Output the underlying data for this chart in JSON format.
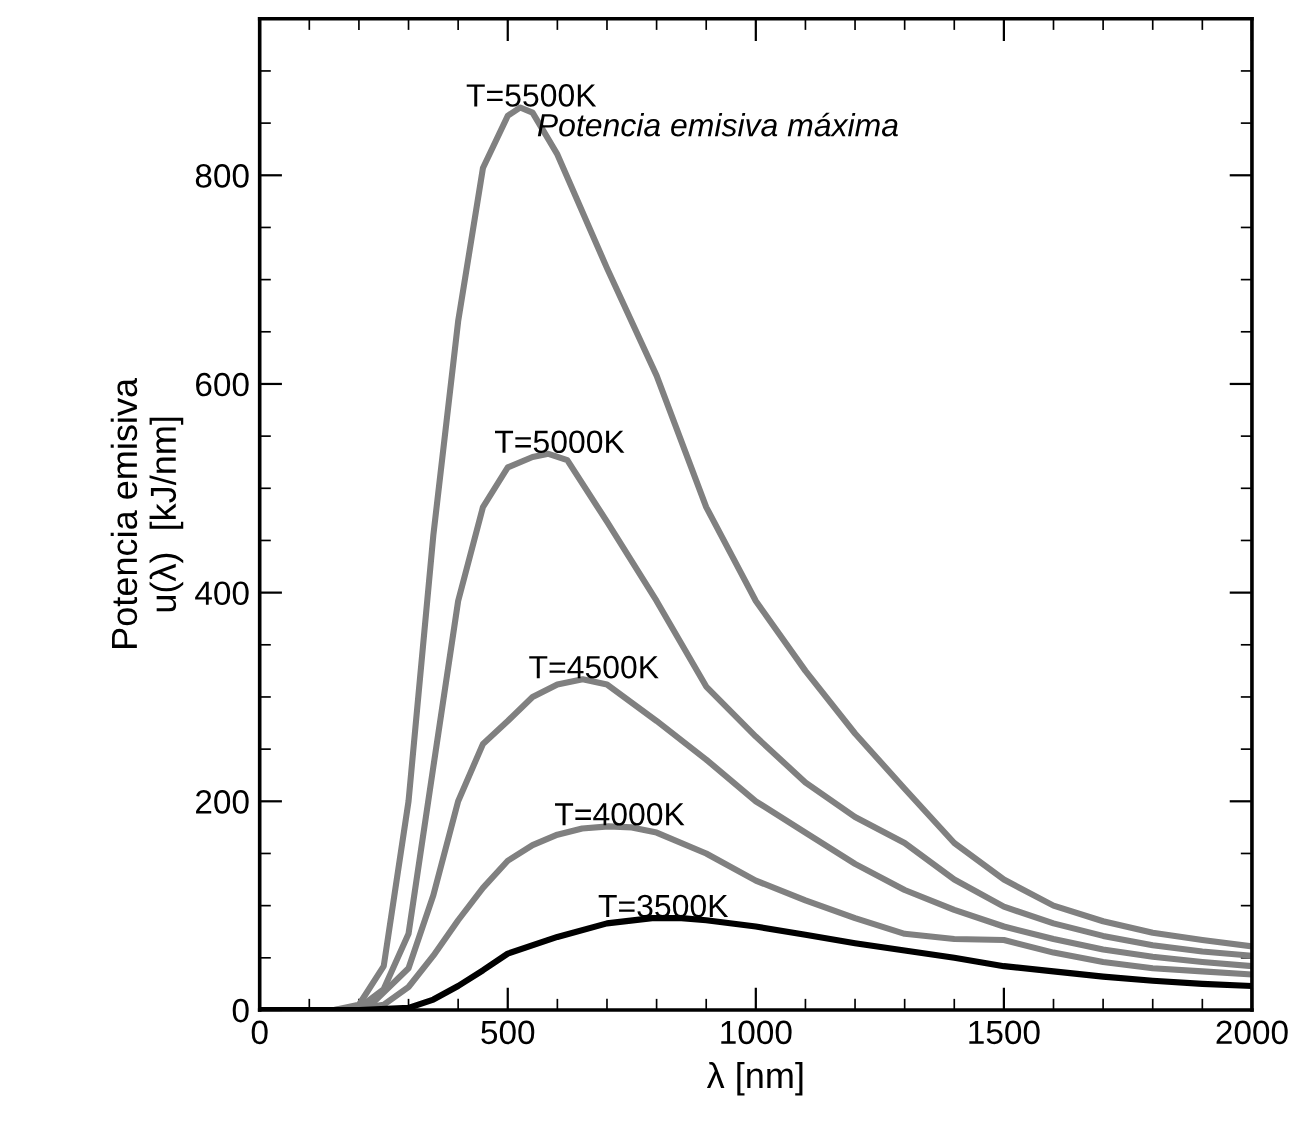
{
  "chart_data": {
    "type": "line",
    "xlabel": "λ [nm]",
    "ylabel": "Potencia emisiva\nu(λ)  [kJ/nm]",
    "xlim": [
      0,
      2000
    ],
    "ylim": [
      0,
      950
    ],
    "xticks": [
      0,
      500,
      1000,
      1500,
      2000
    ],
    "yticks": [
      0,
      200,
      400,
      600,
      800
    ],
    "grid": false,
    "legend": false,
    "marker": "none",
    "line_style": "solid",
    "annotations": [
      {
        "text": "Potencia emisiva máxima",
        "x": 525,
        "y": 865
      }
    ],
    "series": [
      {
        "name": "T=5500K",
        "color": "#808080",
        "x": [
          0,
          150,
          200,
          250,
          300,
          350,
          400,
          450,
          500,
          525,
          550,
          600,
          700,
          800,
          900,
          1000,
          1100,
          1200,
          1300,
          1400,
          1500,
          1600,
          1700,
          1800,
          1900,
          2000
        ],
        "values": [
          0,
          0,
          5,
          42,
          200,
          455,
          660,
          807,
          857,
          865,
          860,
          820,
          711,
          608,
          482,
          392,
          325,
          265,
          212,
          160,
          125,
          100,
          85,
          74,
          67,
          61
        ]
      },
      {
        "name": "T=5000K",
        "color": "#808080",
        "x": [
          0,
          150,
          200,
          250,
          300,
          350,
          400,
          450,
          500,
          550,
          582,
          620,
          700,
          800,
          900,
          1000,
          1100,
          1200,
          1300,
          1400,
          1500,
          1600,
          1700,
          1800,
          1900,
          2000
        ],
        "values": [
          0,
          0,
          2,
          20,
          73,
          233,
          392,
          482,
          520,
          530,
          533,
          527,
          468,
          392,
          310,
          262,
          218,
          185,
          160,
          125,
          99,
          83,
          71,
          62,
          56,
          52
        ]
      },
      {
        "name": "T=4500K",
        "color": "#808080",
        "x": [
          0,
          170,
          220,
          300,
          350,
          400,
          450,
          500,
          550,
          600,
          651,
          700,
          800,
          900,
          1000,
          1100,
          1200,
          1300,
          1400,
          1500,
          1600,
          1700,
          1800,
          1900,
          2000
        ],
        "values": [
          0,
          0,
          3,
          40,
          110,
          200,
          255,
          277,
          300,
          312,
          317,
          312,
          277,
          240,
          200,
          170,
          140,
          115,
          96,
          80,
          68,
          58,
          51,
          46,
          42
        ]
      },
      {
        "name": "T=4000K",
        "color": "#808080",
        "x": [
          0,
          180,
          250,
          300,
          350,
          400,
          450,
          500,
          550,
          600,
          650,
          703,
          750,
          800,
          900,
          1000,
          1100,
          1200,
          1300,
          1400,
          1500,
          1600,
          1700,
          1800,
          1900,
          2000
        ],
        "values": [
          0,
          0,
          5,
          22,
          52,
          86,
          117,
          143,
          158,
          168,
          174,
          176,
          175,
          170,
          150,
          124,
          105,
          88,
          73,
          68,
          67,
          55,
          46,
          40,
          37,
          34
        ]
      },
      {
        "name": "T=3500K",
        "color": "#000000",
        "x": [
          0,
          200,
          300,
          350,
          400,
          450,
          500,
          600,
          700,
          791,
          850,
          900,
          1000,
          1100,
          1200,
          1300,
          1400,
          1500,
          1600,
          1700,
          1800,
          1900,
          2000
        ],
        "values": [
          0,
          0,
          2,
          10,
          23,
          38,
          54,
          70,
          83,
          88,
          88,
          86,
          80,
          72,
          64,
          57,
          50,
          42,
          37,
          32,
          28,
          25,
          23
        ]
      }
    ]
  }
}
